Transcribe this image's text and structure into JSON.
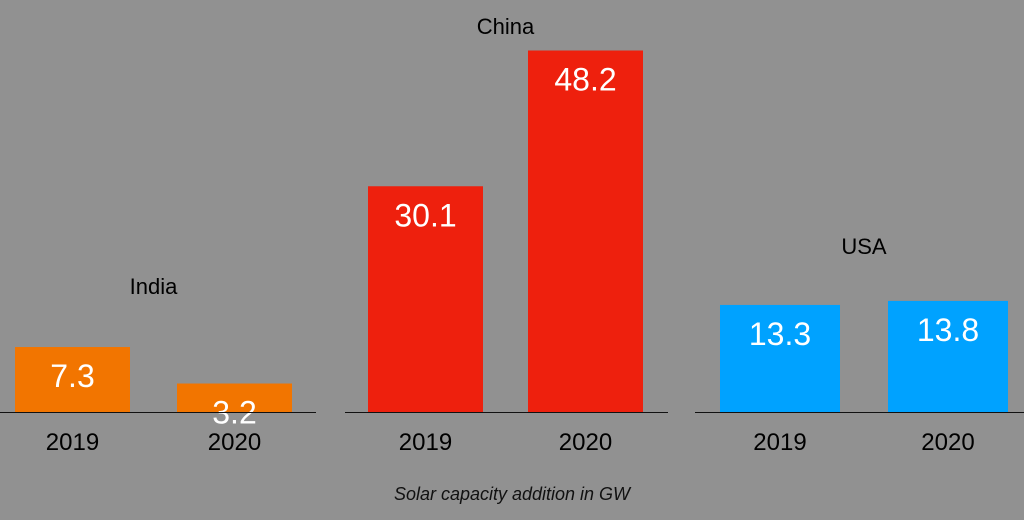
{
  "chart_data": {
    "type": "bar",
    "title": "",
    "caption": "Solar capacity addition in GW",
    "xlabel": "",
    "ylabel": "",
    "grid": false,
    "legend": "none",
    "groups": [
      {
        "name": "India",
        "color": "#f27500",
        "categories": [
          "2019",
          "2020"
        ],
        "values": [
          7.3,
          3.2
        ],
        "labels": [
          "7.3",
          "3.2"
        ]
      },
      {
        "name": "China",
        "color": "#ee200d",
        "categories": [
          "2019",
          "2020"
        ],
        "values": [
          30.1,
          48.2
        ],
        "labels": [
          "30.1",
          "48.2"
        ]
      },
      {
        "name": "USA",
        "color": "#00a2ff",
        "categories": [
          "2019",
          "2020"
        ],
        "values": [
          13.3,
          13.8
        ],
        "labels": [
          "13.3",
          "13.8"
        ]
      }
    ]
  }
}
